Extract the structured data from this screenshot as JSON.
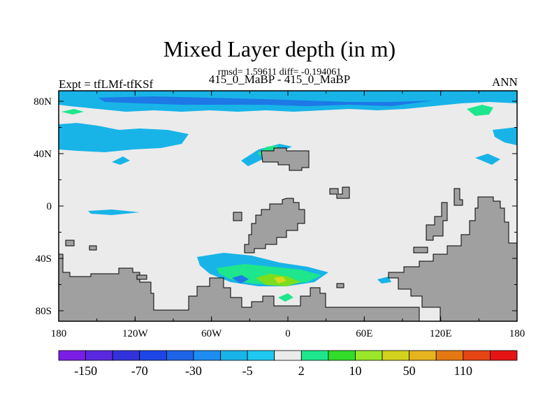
{
  "header": {
    "title": "Mixed Layer depth (in m)",
    "stats": "rmsd= 1.59611 diff= -0.194061",
    "subtitle": "415_0_MaBP - 415_0_MaBP",
    "left_label": "Expt = tfLMf-tfKSf",
    "right_label": "ANN"
  },
  "map": {
    "lon_labels": [
      "180",
      "120W",
      "60W",
      "0",
      "60E",
      "120E",
      "180"
    ],
    "lat_labels": [
      "80N",
      "40N",
      "0",
      "40S",
      "80S"
    ],
    "colors": {
      "land": "#a0a0a0",
      "background": "#ebebeb",
      "cyan": "#18b4e8",
      "blue": "#1e78e6",
      "green": "#1ee68c",
      "lime": "#7ade1e",
      "yellow": "#d8d81e"
    }
  },
  "colorbar": {
    "colors": [
      "#7a1ee6",
      "#5a28e0",
      "#3232dc",
      "#1e46e6",
      "#1e64e6",
      "#1e8cf0",
      "#18b4e8",
      "#1ec8f0",
      "#ebebeb",
      "#1ee68c",
      "#32dc28",
      "#9ae628",
      "#d2d21e",
      "#e6b41e",
      "#e67814",
      "#e64614",
      "#e61414"
    ],
    "labels": [
      "-150",
      "-70",
      "-30",
      "-5",
      "2",
      "10",
      "50",
      "110"
    ]
  }
}
